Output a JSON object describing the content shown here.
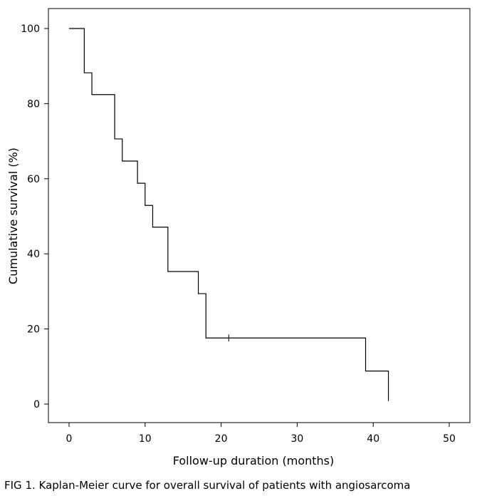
{
  "chart_data": {
    "type": "line",
    "step": true,
    "title": "",
    "xlabel": "Follow-up duration (months)",
    "ylabel": "Cumulative survival (%)",
    "xlim": [
      0,
      50
    ],
    "ylim": [
      0,
      100
    ],
    "xticks": [
      0,
      10,
      20,
      30,
      40,
      50
    ],
    "yticks": [
      0,
      20,
      40,
      60,
      80,
      100
    ],
    "grid": false,
    "series": [
      {
        "x": [
          0,
          2,
          3,
          6,
          7,
          9,
          10,
          11,
          13,
          17,
          18,
          39,
          42
        ],
        "y": [
          100,
          88.2,
          82.4,
          70.6,
          64.7,
          58.8,
          52.9,
          47.1,
          35.3,
          29.4,
          17.6,
          8.8,
          0.8
        ]
      }
    ],
    "censored": [
      {
        "x": 21,
        "y": 17.6
      }
    ]
  },
  "caption": "FIG 1.  Kaplan-Meier curve for overall survival of patients with angiosarcoma"
}
